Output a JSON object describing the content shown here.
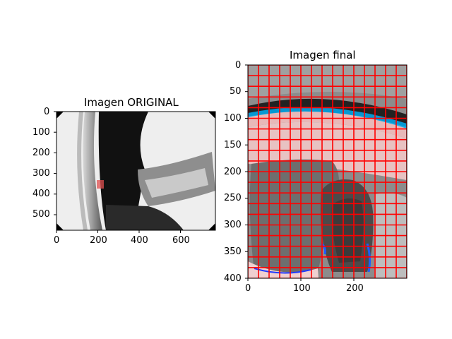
{
  "figure": {
    "left": {
      "title": "Imagen ORIGINAL",
      "xticks": [
        "0",
        "200",
        "400",
        "600"
      ],
      "yticks": [
        "0",
        "100",
        "200",
        "300",
        "400",
        "500"
      ],
      "xlim": [
        0,
        770
      ],
      "ylim": [
        0,
        575
      ],
      "highlight_color": "#e05050"
    },
    "right": {
      "title": "Imagen final",
      "xticks": [
        "0",
        "100",
        "200"
      ],
      "yticks": [
        "0",
        "50",
        "100",
        "150",
        "200",
        "250",
        "300",
        "350",
        "400"
      ],
      "xlim": [
        0,
        300
      ],
      "ylim": [
        0,
        400
      ],
      "grid_color": "#ff0000",
      "grid_rows": 20,
      "grid_cols": 15
    }
  }
}
